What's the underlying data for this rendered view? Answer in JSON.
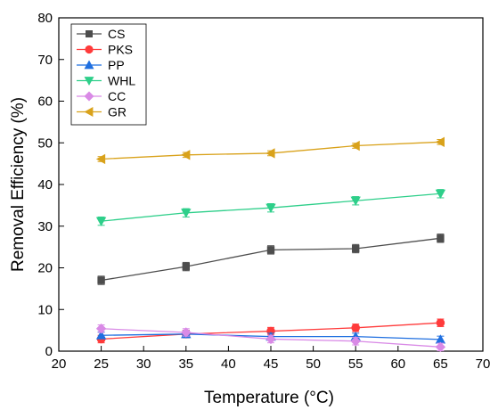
{
  "chart_data": {
    "type": "line",
    "xlabel": "Temperature (°C)",
    "ylabel": "Removal Efficiency (%)",
    "xlim": [
      20,
      70
    ],
    "ylim": [
      0,
      80
    ],
    "x_ticks": [
      20,
      25,
      30,
      35,
      40,
      45,
      50,
      55,
      60,
      65,
      70
    ],
    "y_ticks": [
      0,
      10,
      20,
      30,
      40,
      50,
      60,
      70,
      80
    ],
    "grid": false,
    "legend_position": "top-left",
    "x": [
      25,
      35,
      45,
      55,
      65
    ],
    "series": [
      {
        "name": "CS",
        "color": "#4d4d4d",
        "marker": "square",
        "values": [
          17.0,
          20.3,
          24.3,
          24.6,
          27.1
        ],
        "errors": [
          1.0,
          1.0,
          1.0,
          1.0,
          1.0
        ]
      },
      {
        "name": "PKS",
        "color": "#ff3b3b",
        "marker": "circle",
        "values": [
          2.9,
          4.1,
          4.8,
          5.6,
          6.8
        ],
        "errors": [
          0.9,
          0.9,
          0.9,
          0.9,
          0.9
        ]
      },
      {
        "name": "PP",
        "color": "#1f6fe0",
        "marker": "triangle-up",
        "values": [
          3.8,
          4.1,
          3.5,
          3.5,
          2.8
        ],
        "errors": [
          0.8,
          0.8,
          0.8,
          0.8,
          0.8
        ]
      },
      {
        "name": "WHL",
        "color": "#2ecf8a",
        "marker": "triangle-down",
        "values": [
          31.2,
          33.2,
          34.4,
          36.1,
          37.8
        ],
        "errors": [
          1.0,
          1.0,
          1.0,
          1.0,
          1.0
        ]
      },
      {
        "name": "CC",
        "color": "#d98ae6",
        "marker": "diamond",
        "values": [
          5.4,
          4.5,
          2.9,
          2.4,
          1.0
        ],
        "errors": [
          0.9,
          0.9,
          0.9,
          0.9,
          0.9
        ]
      },
      {
        "name": "GR",
        "color": "#d9a21b",
        "marker": "triangle-left",
        "values": [
          46.1,
          47.1,
          47.5,
          49.3,
          50.2
        ],
        "errors": [
          0.6,
          0.6,
          0.6,
          0.6,
          0.6
        ]
      }
    ]
  }
}
